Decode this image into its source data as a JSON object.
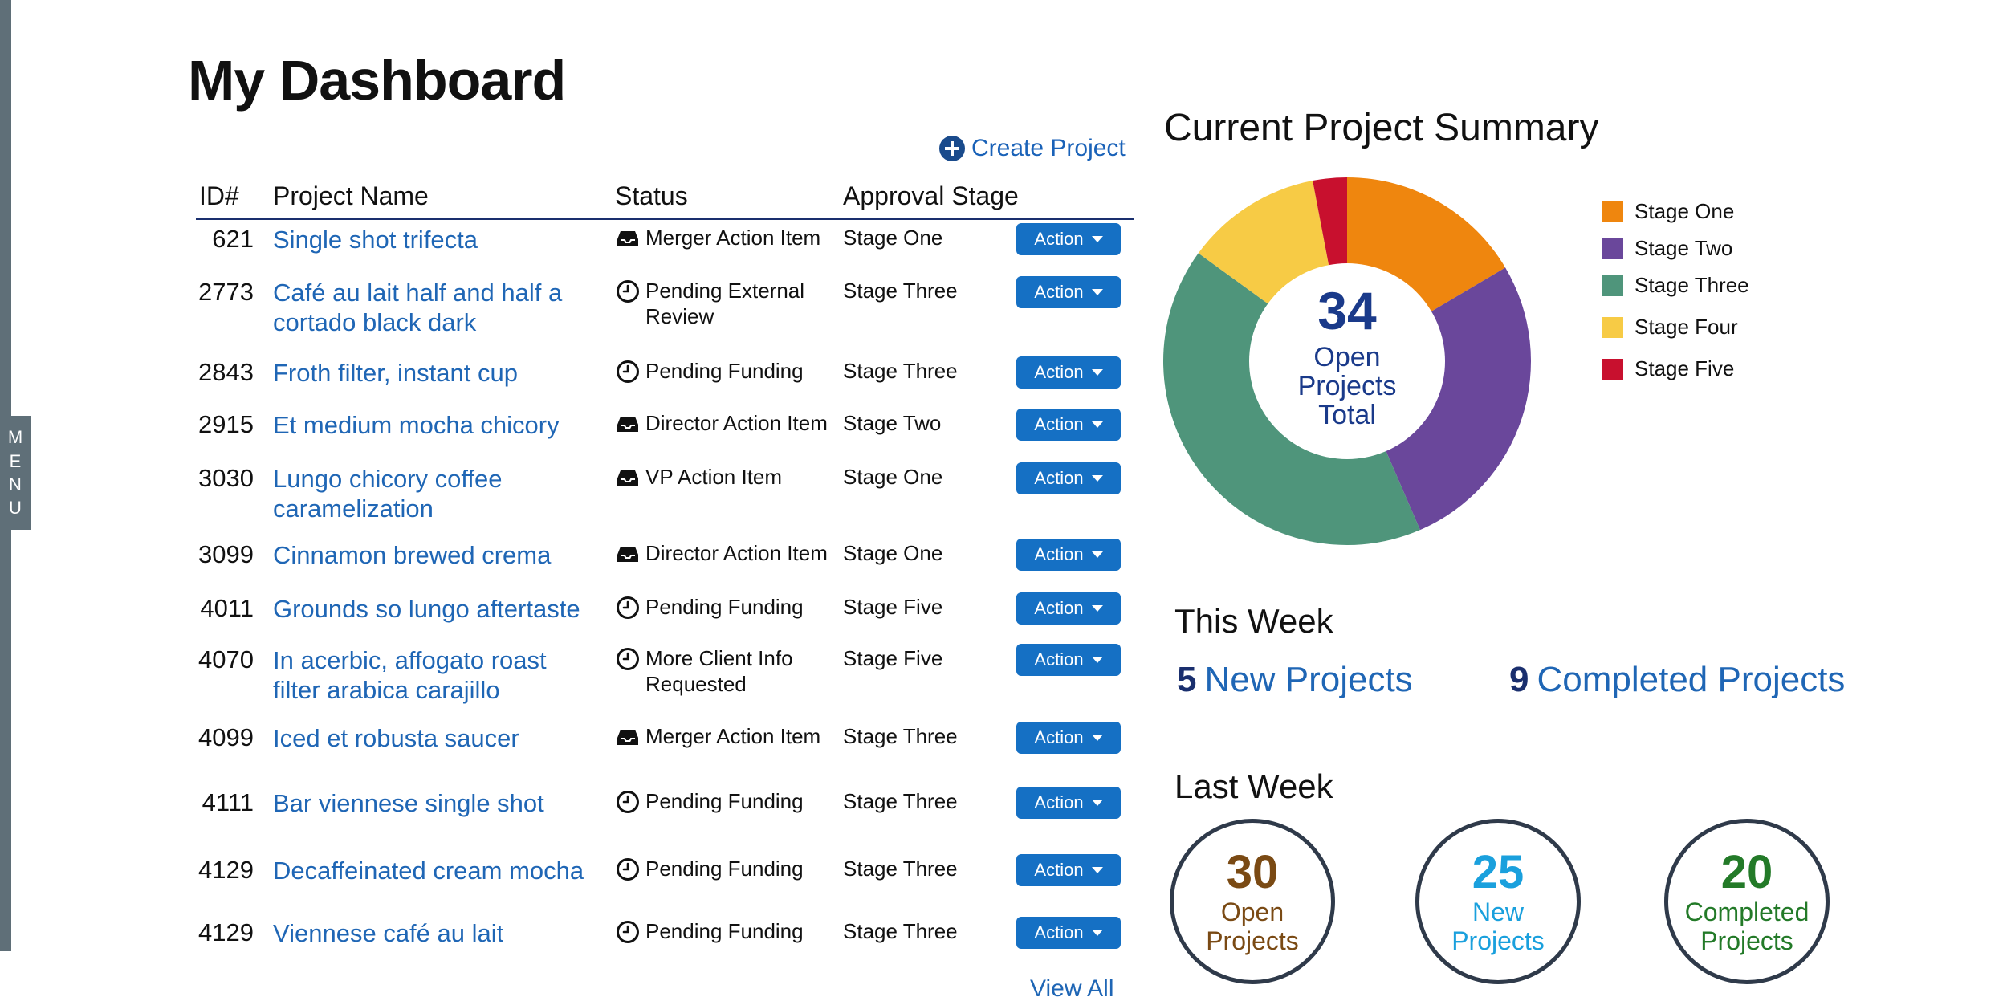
{
  "sidebar": {
    "menu_letters": [
      "M",
      "E",
      "N",
      "U"
    ]
  },
  "page": {
    "title": "My Dashboard"
  },
  "toolbar": {
    "create_label": "Create Project"
  },
  "table": {
    "headers": {
      "id": "ID#",
      "name": "Project Name",
      "status": "Status",
      "stage": "Approval Stage"
    },
    "action_label": "Action",
    "view_all": "View All",
    "rows": [
      {
        "id": "621",
        "name": "Single shot trifecta",
        "status": "Merger Action Item",
        "status_icon": "inbox-icon",
        "stage": "Stage One"
      },
      {
        "id": "2773",
        "name": "Café au lait half and half a cortado black dark",
        "status": "Pending External Review",
        "status_icon": "clock-icon",
        "stage": "Stage Three"
      },
      {
        "id": "2843",
        "name": "Froth filter, instant cup",
        "status": "Pending Funding",
        "status_icon": "clock-icon",
        "stage": "Stage Three"
      },
      {
        "id": "2915",
        "name": "Et medium mocha chicory",
        "status": "Director Action Item",
        "status_icon": "inbox-icon",
        "stage": "Stage Two"
      },
      {
        "id": "3030",
        "name": "Lungo chicory coffee caramelization",
        "status": "VP Action Item",
        "status_icon": "inbox-icon",
        "stage": "Stage One"
      },
      {
        "id": "3099",
        "name": "Cinnamon brewed crema",
        "status": "Director Action Item",
        "status_icon": "inbox-icon",
        "stage": "Stage One"
      },
      {
        "id": "4011",
        "name": "Grounds so lungo aftertaste",
        "status": "Pending Funding",
        "status_icon": "clock-icon",
        "stage": "Stage Five"
      },
      {
        "id": "4070",
        "name": "In acerbic, affogato roast filter arabica carajillo",
        "status": "More Client Info Requested",
        "status_icon": "clock-icon",
        "stage": "Stage Five"
      },
      {
        "id": "4099",
        "name": "Iced et robusta saucer",
        "status": "Merger Action Item",
        "status_icon": "inbox-icon",
        "stage": "Stage Three"
      },
      {
        "id": "4111",
        "name": "Bar viennese single shot",
        "status": "Pending Funding",
        "status_icon": "clock-icon",
        "stage": "Stage Three"
      },
      {
        "id": "4129",
        "name": "Decaffeinated cream mocha",
        "status": "Pending Funding",
        "status_icon": "clock-icon",
        "stage": "Stage Three"
      },
      {
        "id": "4129",
        "name": "Viennese café au lait",
        "status": "Pending Funding",
        "status_icon": "clock-icon",
        "stage": "Stage Three"
      }
    ]
  },
  "summary": {
    "title": "Current Project Summary",
    "center_number": "34",
    "center_line1": "Open",
    "center_line2": "Projects",
    "center_line3": "Total",
    "legend": [
      {
        "label": "Stage One",
        "color": "#ef860e"
      },
      {
        "label": "Stage Two",
        "color": "#6a479b"
      },
      {
        "label": "Stage Three",
        "color": "#4f957b"
      },
      {
        "label": "Stage Four",
        "color": "#f7cb45"
      },
      {
        "label": "Stage Five",
        "color": "#c8102e"
      }
    ]
  },
  "chart_data": {
    "type": "pie",
    "categories": [
      "Stage One",
      "Stage Two",
      "Stage Three",
      "Stage Four",
      "Stage Five"
    ],
    "values": [
      16.5,
      27,
      41.5,
      12,
      3
    ],
    "colors": [
      "#ef860e",
      "#6a479b",
      "#4f957b",
      "#f7cb45",
      "#c8102e"
    ],
    "legend": "right"
  },
  "this_week": {
    "title": "This Week",
    "new_count": "5",
    "new_label": "New Projects",
    "completed_count": "9",
    "completed_label": "Completed Projects"
  },
  "last_week": {
    "title": "Last Week",
    "items": [
      {
        "number": "30",
        "line1": "Open",
        "line2": "Projects",
        "color": "#7a4a14"
      },
      {
        "number": "25",
        "line1": "New",
        "line2": "Projects",
        "color": "#1aa0dd"
      },
      {
        "number": "20",
        "line1": "Completed",
        "line2": "Projects",
        "color": "#237a28"
      }
    ]
  }
}
